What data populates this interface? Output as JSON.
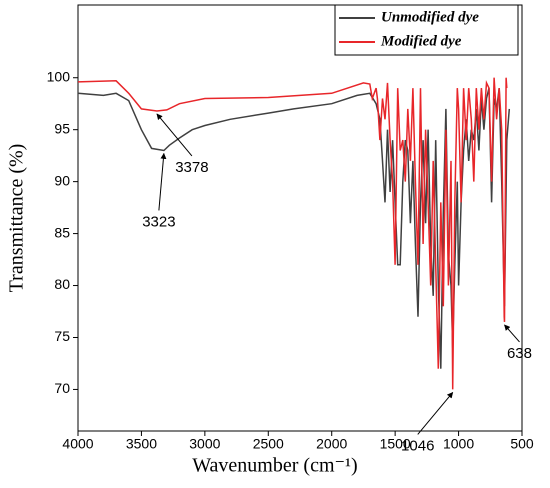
{
  "chart_data": {
    "type": "line",
    "xlabel": "Wavenumber (cm⁻¹)",
    "ylabel": "Transmittance (%)",
    "xlim": [
      4000,
      500
    ],
    "ylim": [
      66,
      107
    ],
    "xticks": [
      4000,
      3500,
      3000,
      2500,
      2000,
      1500,
      1000,
      500
    ],
    "yticks": [
      70,
      75,
      80,
      85,
      90,
      95,
      100
    ],
    "legend": "upper right",
    "series": [
      {
        "name": "Unmodified dye",
        "color": "#404040",
        "x": [
          4000,
          3800,
          3700,
          3600,
          3500,
          3420,
          3323,
          3280,
          3200,
          3100,
          3000,
          2800,
          2500,
          2400,
          2300,
          2000,
          1800,
          1700,
          1650,
          1620,
          1600,
          1580,
          1560,
          1540,
          1520,
          1500,
          1480,
          1460,
          1440,
          1420,
          1400,
          1380,
          1360,
          1340,
          1320,
          1300,
          1280,
          1260,
          1240,
          1220,
          1200,
          1180,
          1160,
          1140,
          1120,
          1100,
          1080,
          1060,
          1046,
          1030,
          1010,
          1000,
          980,
          960,
          940,
          920,
          900,
          880,
          860,
          840,
          820,
          800,
          780,
          760,
          740,
          720,
          700,
          680,
          660,
          640,
          638,
          620,
          600
        ],
        "values": [
          98.5,
          98.3,
          98.5,
          97.8,
          95,
          93.2,
          93,
          93.5,
          94.2,
          95,
          95.4,
          96,
          96.6,
          96.8,
          97,
          97.5,
          98.3,
          98.5,
          97.5,
          96,
          92,
          88,
          95,
          89,
          94,
          88,
          82,
          82,
          90,
          94,
          93,
          86,
          92,
          84,
          77,
          88,
          94,
          86,
          95,
          84,
          79,
          94,
          80,
          72,
          87,
          97,
          83,
          80,
          74,
          82,
          90,
          80,
          88,
          93,
          96,
          92,
          95,
          94,
          97,
          93,
          98,
          95,
          98,
          99,
          88,
          98,
          97,
          99,
          90,
          79,
          78,
          94,
          97
        ]
      },
      {
        "name": "Modified dye",
        "color": "#e8262a",
        "x": [
          4000,
          3700,
          3600,
          3500,
          3378,
          3300,
          3200,
          3000,
          2500,
          2000,
          1750,
          1700,
          1680,
          1650,
          1640,
          1620,
          1600,
          1580,
          1560,
          1540,
          1520,
          1500,
          1480,
          1460,
          1440,
          1420,
          1400,
          1380,
          1360,
          1340,
          1320,
          1300,
          1280,
          1260,
          1240,
          1220,
          1200,
          1180,
          1160,
          1140,
          1120,
          1100,
          1080,
          1060,
          1046,
          1030,
          1010,
          1000,
          980,
          960,
          940,
          920,
          900,
          880,
          860,
          840,
          820,
          800,
          780,
          760,
          740,
          720,
          700,
          680,
          660,
          640,
          638,
          625,
          620
        ],
        "values": [
          99.6,
          99.7,
          98.5,
          97,
          96.8,
          96.9,
          97.5,
          98,
          98.1,
          98.5,
          99.5,
          99.4,
          98,
          99,
          98,
          94,
          98,
          96,
          99.5,
          94,
          90,
          82,
          99,
          93,
          94,
          90,
          97,
          92,
          99,
          90,
          82,
          99,
          84,
          95,
          88,
          80,
          92,
          82,
          72,
          88,
          78,
          95,
          80,
          92,
          70,
          88,
          99,
          97,
          88,
          99,
          94,
          99,
          96,
          90,
          99,
          95,
          99,
          96,
          99.5,
          99,
          90,
          100,
          96,
          99,
          95,
          77,
          76.5,
          100,
          99
        ]
      }
    ],
    "annotations": [
      {
        "text": "3378",
        "x": 3378,
        "y": 96.8
      },
      {
        "text": "3323",
        "x": 3323,
        "y": 93
      },
      {
        "text": "1046",
        "x": 1046,
        "y": 70
      },
      {
        "text": "638",
        "x": 638,
        "y": 76.5
      }
    ]
  }
}
